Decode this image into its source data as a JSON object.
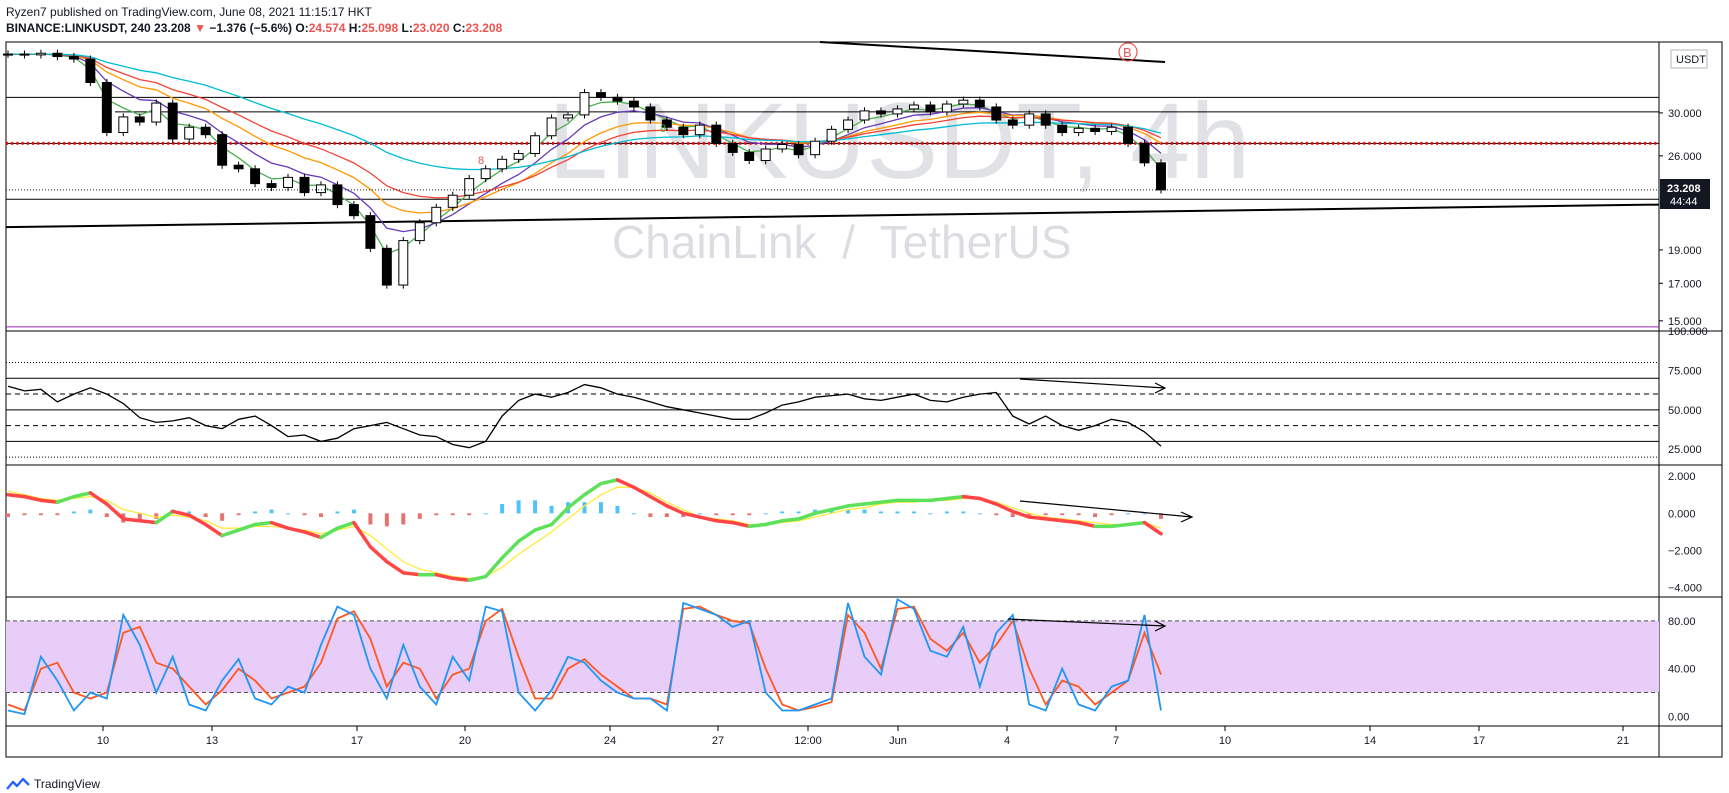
{
  "header": {
    "publisher_line": "Ryzen7 published on TradingView.com, June 08, 2021 11:15:17 HKT",
    "symbol": "BINANCE:LINKUSDT, 240",
    "last": "23.208",
    "change_arrow": "▼",
    "change": "−1.376 (−5.6%)",
    "o_label": "O:",
    "o": "24.574",
    "h_label": "H:",
    "h": "25.098",
    "l_label": "L:",
    "l": "23.020",
    "c_label": "C:",
    "c": "23.208"
  },
  "watermark": {
    "main": "LINKUSDT, 4h",
    "sub": "ChainLink  /  TetherUS"
  },
  "footer": {
    "brand": "TradingView"
  },
  "currency_label": "USDT",
  "price_badge": {
    "price": "23.208",
    "countdown": "44:44"
  },
  "markers": {
    "circle_b": "B",
    "count_a": "8",
    "count_b": "8"
  },
  "colors": {
    "up": "#ffffff",
    "down": "#000000",
    "support_dots": "#ff0000",
    "ema_green": "#4caf50",
    "ema_purple": "#673ab7",
    "ema_orange": "#ff9800",
    "ema_red": "#f44336",
    "ema_cyan": "#00bcd4",
    "ema_black": "#000000",
    "stoch_band": "#e7cdf7",
    "stoch_k": "#2196f3",
    "stoch_d": "#ff5722",
    "macd_up": "#5ee15a",
    "macd_down": "#ff4545",
    "macd_signal": "#ffeb3b"
  },
  "chart_data": [
    {
      "type": "candlestick",
      "title": "BINANCE:LINKUSDT, 240",
      "y_ticks": [
        "30.000",
        "26.000",
        "23.208",
        "19.000",
        "17.000",
        "15.000"
      ],
      "x_ticks": [
        "10",
        "13",
        "17",
        "20",
        "24",
        "27",
        "12:00",
        "Jun",
        "4",
        "7",
        "10",
        "14",
        "17",
        "21"
      ],
      "ylim": [
        14.5,
        38
      ],
      "log_scale": true,
      "ohlc_close": [
        36.5,
        36.4,
        36.6,
        36.2,
        35.9,
        33.2,
        28.1,
        29.6,
        29.1,
        31.0,
        27.5,
        28.6,
        27.9,
        25.2,
        24.9,
        23.7,
        23.4,
        24.2,
        23.0,
        23.6,
        22.1,
        21.3,
        19.1,
        16.9,
        19.6,
        20.8,
        21.9,
        22.8,
        24.1,
        24.9,
        25.7,
        26.2,
        27.8,
        29.5,
        29.8,
        32.1,
        31.6,
        31.2,
        30.6,
        29.3,
        28.6,
        27.9,
        28.8,
        27.1,
        26.3,
        25.6,
        26.6,
        27.0,
        26.1,
        27.3,
        28.4,
        29.3,
        30.2,
        29.9,
        30.4,
        30.8,
        30.1,
        30.9,
        31.3,
        30.6,
        29.3,
        28.8,
        29.9,
        28.8,
        28.1,
        28.5,
        28.2,
        28.6,
        27.1,
        25.4,
        23.208
      ],
      "horizontal_levels": [
        31.6,
        30.1,
        27.1,
        22.5,
        14.7
      ],
      "trendline": [
        [
          0,
          20.5
        ],
        [
          1,
          22.1
        ]
      ]
    },
    {
      "type": "line",
      "title": "RSI",
      "y_ticks": [
        "100.000",
        "75.000",
        "50.000",
        "25.000"
      ],
      "ylim": [
        15,
        100
      ],
      "levels": [
        80,
        70,
        60,
        50,
        40,
        30,
        20
      ],
      "series": [
        {
          "values": [
            65,
            62,
            63,
            55,
            60,
            64,
            60,
            54,
            45,
            42,
            43,
            45,
            40,
            38,
            44,
            46,
            40,
            33,
            34,
            30,
            32,
            38,
            40,
            42,
            38,
            34,
            33,
            28,
            26,
            30,
            46,
            56,
            60,
            58,
            61,
            66,
            64,
            60,
            58,
            55,
            52,
            50,
            48,
            46,
            44,
            44,
            48,
            53,
            55,
            58,
            59,
            60,
            57,
            56,
            58,
            60,
            56,
            55,
            58,
            60,
            61,
            46,
            41,
            46,
            40,
            37,
            40,
            44,
            42,
            36,
            27
          ]
        }
      ]
    },
    {
      "type": "bar",
      "title": "MACD",
      "y_ticks": [
        "2.000",
        "0.000",
        "−2.000",
        "−4.000"
      ],
      "ylim": [
        -4.5,
        2.6
      ],
      "series": [
        {
          "name": "",
          "values": [
            1.0,
            0.9,
            0.7,
            0.6,
            0.9,
            1.1,
            0.5,
            -0.3,
            -0.4,
            -0.5,
            0.1,
            -0.1,
            -0.6,
            -1.2,
            -0.9,
            -0.6,
            -0.5,
            -0.8,
            -1.0,
            -1.3,
            -0.8,
            -0.5,
            -1.8,
            -2.6,
            -3.2,
            -3.3,
            -3.3,
            -3.5,
            -3.6,
            -3.4,
            -2.4,
            -1.5,
            -0.9,
            -0.6,
            0.3,
            1.0,
            1.6,
            1.8,
            1.4,
            0.9,
            0.4,
            0.0,
            -0.2,
            -0.4,
            -0.5,
            -0.7,
            -0.6,
            -0.4,
            -0.3,
            0.0,
            0.2,
            0.4,
            0.5,
            0.6,
            0.7,
            0.7,
            0.7,
            0.8,
            0.9,
            0.8,
            0.5,
            0.1,
            -0.2,
            -0.3,
            -0.4,
            -0.5,
            -0.7,
            -0.7,
            -0.6,
            -0.5,
            -1.1
          ]
        },
        {
          "name": "",
          "values": [
            1.2,
            1.0,
            0.8,
            0.7,
            0.8,
            0.9,
            0.7,
            0.2,
            0.0,
            -0.2,
            -0.1,
            -0.2,
            -0.4,
            -0.8,
            -0.8,
            -0.7,
            -0.7,
            -0.8,
            -0.9,
            -1.1,
            -0.9,
            -0.7,
            -1.2,
            -1.9,
            -2.6,
            -3.0,
            -3.2,
            -3.4,
            -3.5,
            -3.4,
            -2.9,
            -2.2,
            -1.6,
            -1.0,
            -0.3,
            0.4,
            1.0,
            1.4,
            1.4,
            1.1,
            0.6,
            0.2,
            -0.2,
            -0.3,
            -0.4,
            -0.6,
            -0.6,
            -0.5,
            -0.4,
            -0.2,
            0.0,
            0.2,
            0.3,
            0.5,
            0.6,
            0.6,
            0.7,
            0.7,
            0.8,
            0.8,
            0.6,
            0.3,
            0.0,
            -0.2,
            -0.3,
            -0.4,
            -0.5,
            -0.6,
            -0.6,
            -0.5,
            -0.8
          ]
        }
      ]
    },
    {
      "type": "line",
      "title": "Stochastic",
      "y_ticks": [
        "80.00",
        "40.00",
        "0.00"
      ],
      "ylim": [
        -8,
        100
      ],
      "band": [
        20,
        80
      ],
      "series": [
        {
          "values": [
            5,
            2,
            50,
            30,
            5,
            20,
            15,
            85,
            60,
            20,
            50,
            10,
            5,
            30,
            48,
            15,
            10,
            25,
            20,
            60,
            92,
            85,
            40,
            15,
            60,
            25,
            10,
            50,
            30,
            92,
            88,
            20,
            5,
            22,
            50,
            45,
            30,
            20,
            15,
            15,
            5,
            95,
            90,
            85,
            75,
            80,
            20,
            5,
            5,
            10,
            15,
            95,
            50,
            35,
            98,
            90,
            55,
            50,
            75,
            25,
            70,
            85,
            10,
            5,
            40,
            10,
            5,
            25,
            30,
            85,
            5
          ]
        },
        {
          "values": [
            10,
            5,
            40,
            45,
            20,
            15,
            20,
            70,
            75,
            45,
            40,
            25,
            10,
            22,
            40,
            30,
            15,
            20,
            25,
            45,
            82,
            88,
            65,
            25,
            45,
            40,
            15,
            35,
            40,
            80,
            90,
            50,
            15,
            15,
            40,
            48,
            35,
            25,
            15,
            15,
            10,
            90,
            92,
            85,
            80,
            78,
            40,
            10,
            5,
            8,
            12,
            85,
            70,
            40,
            90,
            92,
            65,
            55,
            70,
            45,
            60,
            80,
            40,
            10,
            30,
            25,
            10,
            20,
            30,
            70,
            35
          ]
        }
      ]
    }
  ]
}
